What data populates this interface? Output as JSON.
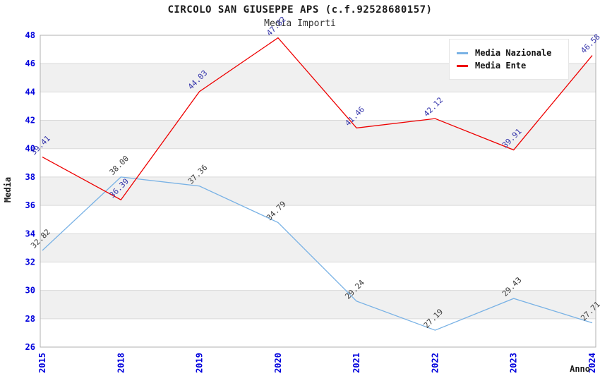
{
  "chart_data": {
    "type": "line",
    "title": "CIRCOLO SAN GIUSEPPE APS (c.f.92528680157)",
    "subtitle": "Media Importi",
    "xlabel": "Anno",
    "ylabel": "Media",
    "ylim": [
      26,
      48
    ],
    "ytick_step": 2,
    "grid": true,
    "legend_position": "top-right",
    "categories": [
      "2015",
      "2018",
      "2019",
      "2020",
      "2021",
      "2022",
      "2023",
      "2024"
    ],
    "series": [
      {
        "name": "Media Nazionale",
        "color": "#79b2e5",
        "label_color": "#3c3c3c",
        "values": [
          32.82,
          38.0,
          37.36,
          34.79,
          29.24,
          27.19,
          29.43,
          27.71
        ]
      },
      {
        "name": "Media Ente",
        "color": "#ee0000",
        "label_color": "#3333aa",
        "values": [
          39.41,
          36.39,
          44.03,
          47.82,
          41.46,
          42.12,
          39.91,
          46.58
        ]
      }
    ],
    "band_colors": [
      "#ffffff",
      "#f0f0f0"
    ],
    "gridline_color": "#d9d9d9",
    "axis_border_color": "#b0b0b0",
    "tick_label_color": "#0000dd"
  }
}
